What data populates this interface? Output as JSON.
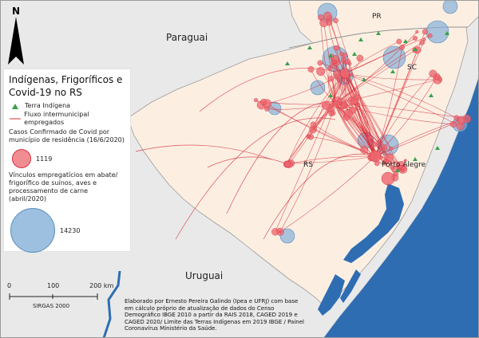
{
  "north_arrow": {
    "letter": "N"
  },
  "labels": {
    "country_paraguai": "Paraguai",
    "country_uruguai": "Uruguai",
    "state_pr": "PR",
    "state_sc": "SC",
    "state_rs": "RS",
    "city_porto_alegre": "Porto Alegre"
  },
  "legend": {
    "title": "Indígenas, Frigoríficos e Covid-19 no RS",
    "items": [
      {
        "label": "Terra Indígena",
        "icon": "green-triangle-icon"
      },
      {
        "label": "Fluxo intermunicipal empregados",
        "icon": "red-line-icon"
      }
    ],
    "covid_heading": "Casos Confirmado de Covid por município de residência (16/6/2020)",
    "covid_value": "1119",
    "jobs_heading": "Vínculos empregatícios em abate/ frigorífico de suínos, aves e processamento de carne (abril/2020)",
    "jobs_value": "14230"
  },
  "scale_bar": {
    "labels": [
      "0",
      "100",
      "200 km"
    ],
    "crs": "SIRGAS 2000"
  },
  "credits": "Elaborado por Ernesto Pereira Galindo (Ipea e UFRJ) com base em cálculo próprio de atualização de dados do Censo Demográfico IBGE 2010 a partir da RAIS 2018, CAGED 2019 e CAGED 2020/ Limite das Terras Indígenas em 2019 IBGE / Painel Coronavírus Ministério da Saúde.",
  "colors": {
    "ocean": "#2f6db3",
    "neighbor_land": "#e9e9e9",
    "rs_land": "#fcefe2",
    "covid_circle": "#ec666e",
    "jobs_circle": "#84b0d8",
    "flow_line": "#d92b35",
    "indigenous_land": "#3aa14a"
  }
}
